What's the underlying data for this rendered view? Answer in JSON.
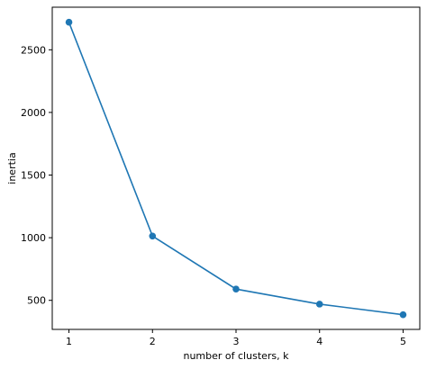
{
  "chart_data": {
    "type": "line",
    "title": "",
    "xlabel": "number of clusters, k",
    "ylabel": "inertia",
    "x": [
      1,
      2,
      3,
      4,
      5
    ],
    "series": [
      {
        "values": [
          2720,
          1013,
          590,
          470,
          385
        ],
        "color": "#1f77b4",
        "marker": "circle"
      }
    ],
    "xlim": [
      0.8,
      5.2
    ],
    "ylim": [
      268,
      2840
    ],
    "xticks": [
      1,
      2,
      3,
      4,
      5
    ],
    "yticks": [
      500,
      1000,
      1500,
      2000,
      2500
    ],
    "grid": false,
    "legend": "none"
  }
}
